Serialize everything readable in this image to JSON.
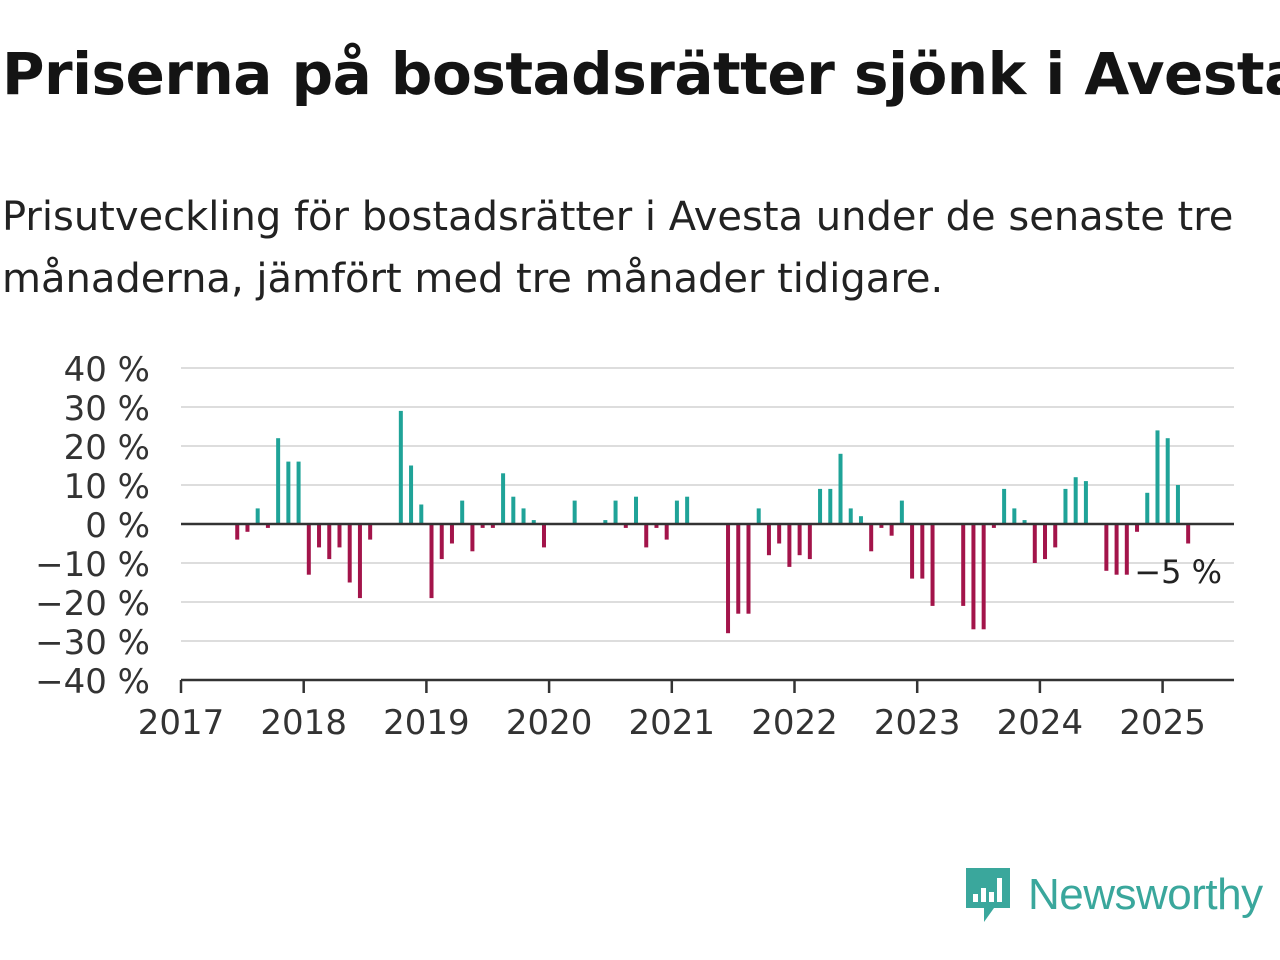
{
  "title": "Priserna på bostadsrätter sjönk i Avesta",
  "subtitle": "Prisutveckling för bostadsrätter i Avesta under de senaste tre månaderna, jämfört med tre månader tidigare.",
  "brand": {
    "name": "Newsworthy",
    "icon": "newsworthy-logo-icon",
    "color": "#3aa79c"
  },
  "colors": {
    "positive": "#1fa398",
    "negative": "#a3144a",
    "grid": "#dddddd",
    "axis": "#333333"
  },
  "chart_data": {
    "type": "bar",
    "title": "Priserna på bostadsrätter sjönk i Avesta",
    "xlabel": "",
    "ylabel": "",
    "ylim": [
      -40,
      40
    ],
    "y_ticks": [
      40,
      30,
      20,
      10,
      0,
      -10,
      -20,
      -30,
      -40
    ],
    "y_tick_labels": [
      "40 %",
      "30 %",
      "20 %",
      "10 %",
      "0 %",
      "−10 %",
      "−20 %",
      "−30 %",
      "−40 %"
    ],
    "x_ticks": [
      "2017",
      "2018",
      "2019",
      "2020",
      "2021",
      "2022",
      "2023",
      "2024",
      "2025"
    ],
    "grid": true,
    "unit": "%",
    "annotation": "−5 %",
    "start_month": "2017-01",
    "values": [
      0,
      0,
      0,
      0,
      0,
      -4,
      -2,
      4,
      -1,
      22,
      16,
      16,
      -13,
      -6,
      -9,
      -6,
      -15,
      -19,
      -4,
      0,
      0,
      29,
      15,
      5,
      -19,
      -9,
      -5,
      6,
      -7,
      -1,
      -1,
      13,
      7,
      4,
      1,
      -6,
      0,
      0,
      6,
      0,
      0,
      1,
      6,
      -1,
      7,
      -6,
      -1,
      -4,
      6,
      7,
      0,
      0,
      0,
      -28,
      -23,
      -23,
      4,
      -8,
      -5,
      -11,
      -8,
      -9,
      9,
      9,
      18,
      4,
      2,
      -7,
      -1,
      -3,
      6,
      -14,
      -14,
      -21,
      0,
      0,
      -21,
      -27,
      -27,
      -1,
      9,
      4,
      1,
      -10,
      -9,
      -6,
      9,
      12,
      11,
      0,
      -12,
      -13,
      -13,
      -2,
      8,
      24,
      22,
      10,
      -5
    ]
  }
}
